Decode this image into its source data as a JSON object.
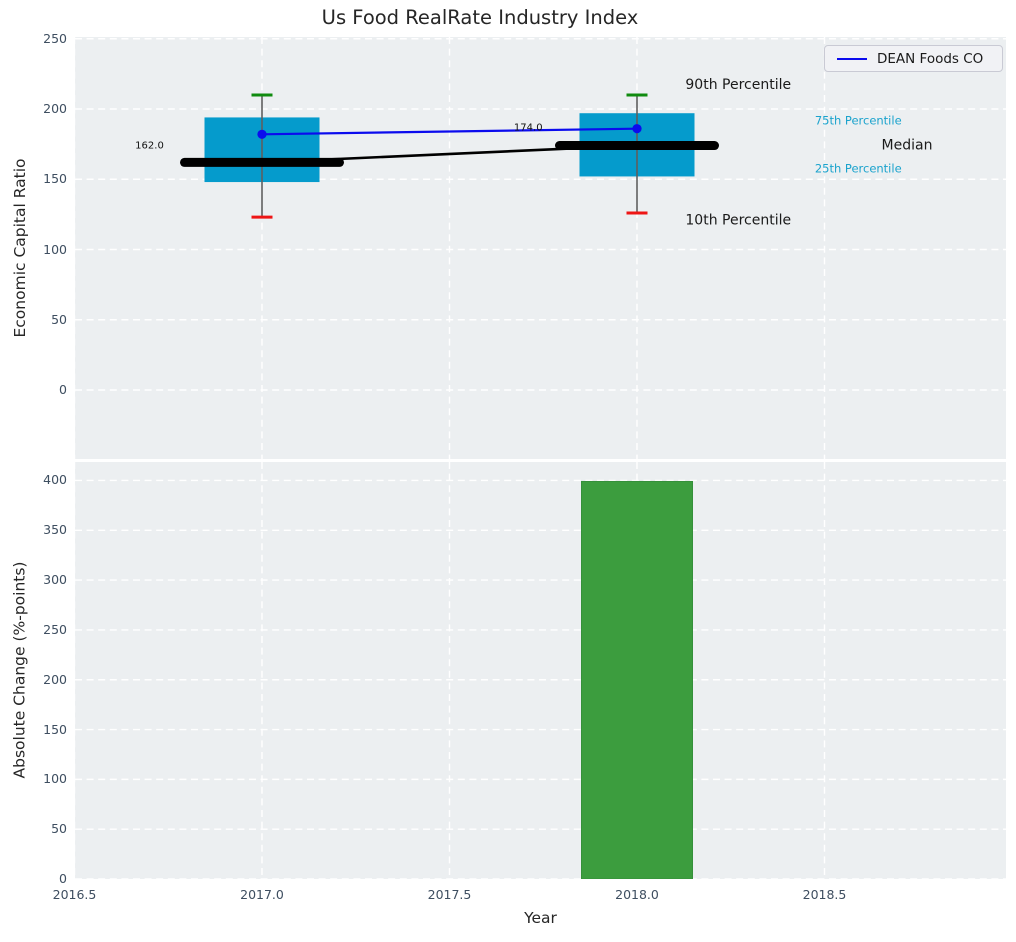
{
  "figure": {
    "title": "Us Food RealRate Industry Index",
    "legend": {
      "label": "DEAN Foods CO",
      "line_color": "#0b0bee"
    },
    "colors": {
      "axes_background": "#eceff1",
      "grid": "#ffffff",
      "tick_text": "#3e4e60",
      "title_text": "#262626",
      "box_fill": "#059bcc",
      "whisker": "#5f5f5f",
      "cap_90th": "#0f8b0f",
      "cap_10th": "#ee1515",
      "median_line": "#000000",
      "company_line": "#0b0bee",
      "bar_fill": "#3c9d3e",
      "bar_edge": "#35903a",
      "cyan_label": "#1ba3cd",
      "dark_label": "#1a1a1a",
      "annotation_text": "#111111"
    }
  },
  "chart_data": [
    {
      "type": "box+line",
      "title": "Us Food RealRate Industry Index",
      "ylabel": "Economic Capital Ratio",
      "ylim": [
        -49,
        251
      ],
      "xlim": [
        2016.5,
        2019.0
      ],
      "grid": true,
      "legend_position": "upper right",
      "yticks": {
        "values": [
          0,
          50,
          100,
          150,
          200,
          250
        ],
        "labels": [
          "0",
          "50",
          "100",
          "150",
          "200",
          "250"
        ]
      },
      "boxes": [
        {
          "x": 2017,
          "p10": 123,
          "p25": 148,
          "median": 162,
          "p75": 194,
          "p90": 210
        },
        {
          "x": 2018,
          "p10": 126,
          "p25": 152,
          "median": 174,
          "p75": 197,
          "p90": 210
        }
      ],
      "series": [
        {
          "name": "DEAN Foods CO",
          "x": [
            2017,
            2018
          ],
          "y": [
            182,
            186
          ],
          "color": "#0b0bee"
        }
      ],
      "value_annotations": [
        {
          "text": "162.0",
          "x": 2016.7,
          "y": 174.4
        },
        {
          "text": "174.0",
          "x": 2017.71,
          "y": 187.2
        }
      ],
      "percentile_labels": [
        {
          "text": "90th Percentile",
          "x": 2018.27,
          "y": 217.4,
          "color": "#1a1a1a",
          "size": "large"
        },
        {
          "text": "75th Percentile",
          "x": 2018.59,
          "y": 192.2,
          "color": "#1ba3cd",
          "size": "small"
        },
        {
          "text": "Median",
          "x": 2018.72,
          "y": 174.4,
          "color": "#1a1a1a",
          "size": "large"
        },
        {
          "text": "25th Percentile",
          "x": 2018.59,
          "y": 158.0,
          "color": "#1ba3cd",
          "size": "small"
        },
        {
          "text": "10th Percentile",
          "x": 2018.27,
          "y": 121.0,
          "color": "#1a1a1a",
          "size": "large"
        }
      ]
    },
    {
      "type": "bar",
      "ylabel": "Absolute Change (%-points)",
      "xlabel": "Year",
      "ylim": [
        0,
        420
      ],
      "grid": true,
      "yticks": {
        "values": [
          0,
          50,
          100,
          150,
          200,
          250,
          300,
          350,
          400
        ],
        "labels": [
          "0",
          "50",
          "100",
          "150",
          "200",
          "250",
          "300",
          "350",
          "400"
        ]
      },
      "xticks": {
        "values": [
          2016.5,
          2017.0,
          2017.5,
          2018.0,
          2018.5
        ],
        "labels": [
          "2016.5",
          "2017.0",
          "2017.5",
          "2018.0",
          "2018.5"
        ]
      },
      "bars": [
        {
          "x": 2018,
          "value": 399,
          "width_years": 0.3,
          "color": "#3c9d3e"
        }
      ]
    }
  ]
}
